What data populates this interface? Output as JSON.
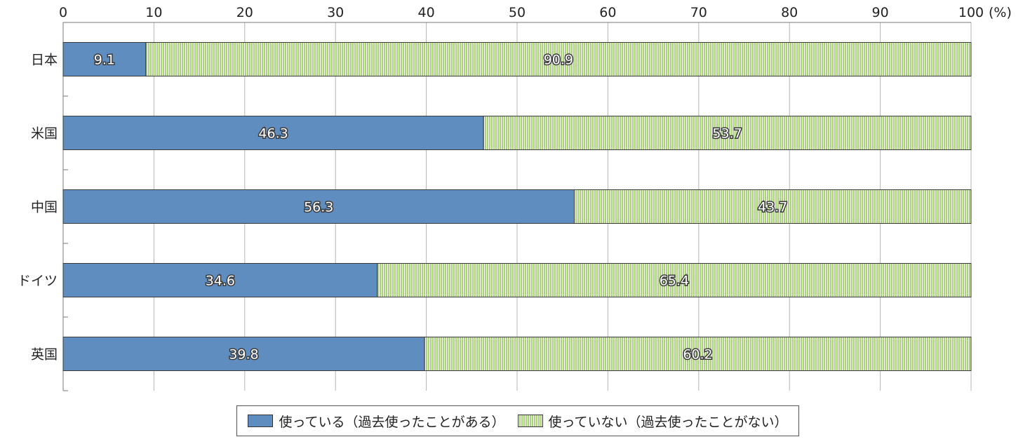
{
  "chart_data": {
    "type": "bar",
    "orientation": "horizontal",
    "stacked": true,
    "categories": [
      "日本",
      "米国",
      "中国",
      "ドイツ",
      "英国"
    ],
    "series": [
      {
        "name": "使っている（過去使ったことがある）",
        "color": "#5f8dbf",
        "values": [
          9.1,
          46.3,
          56.3,
          34.6,
          39.8
        ]
      },
      {
        "name": "使っていない（過去使ったことがない）",
        "color": "#a9d27a",
        "values": [
          90.9,
          53.7,
          43.7,
          65.4,
          60.2
        ]
      }
    ],
    "xlim": [
      0,
      100
    ],
    "xticks": [
      "0",
      "10",
      "20",
      "30",
      "40",
      "50",
      "60",
      "70",
      "80",
      "90",
      "100"
    ],
    "xunit": "(%)",
    "grid": true,
    "legend_position": "bottom"
  }
}
